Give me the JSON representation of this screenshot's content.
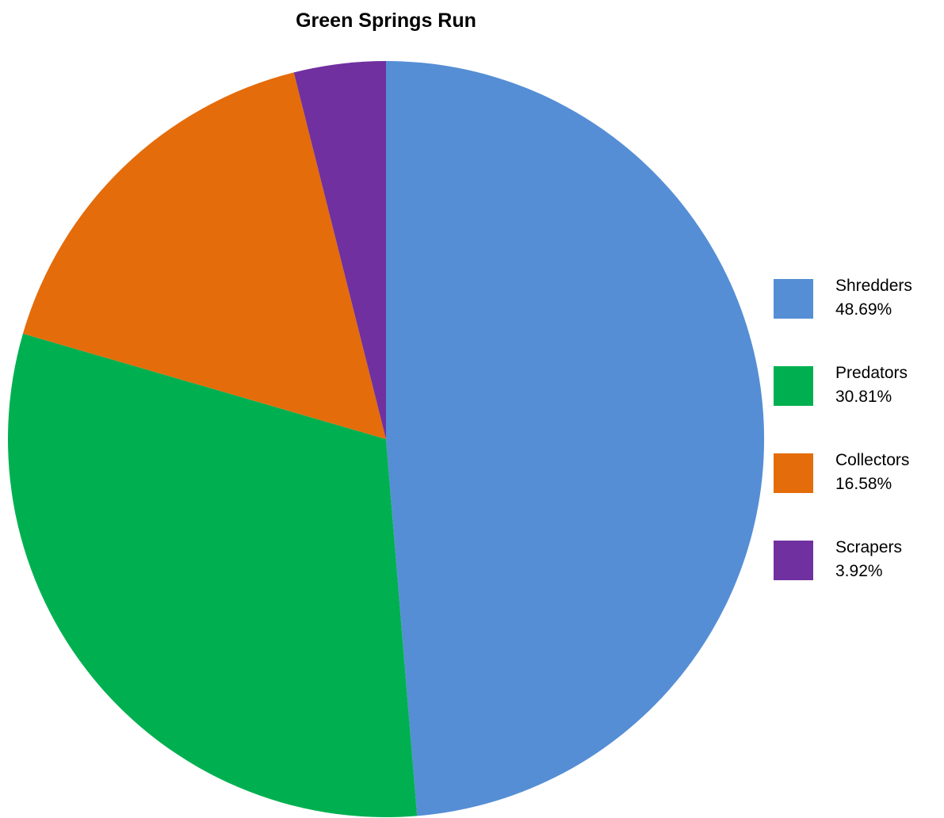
{
  "chart_data": {
    "type": "pie",
    "title": "Green Springs Run",
    "legend_position": "right",
    "slices": [
      {
        "label": "Shredders",
        "value": 48.69,
        "percent_label": "48.69%",
        "color": "#558ED5"
      },
      {
        "label": "Predators",
        "value": 30.81,
        "percent_label": "30.81%",
        "color": "#00B050"
      },
      {
        "label": "Collectors",
        "value": 16.58,
        "percent_label": "16.58%",
        "color": "#E46C0A"
      },
      {
        "label": "Scrapers",
        "value": 3.92,
        "percent_label": "3.92%",
        "color": "#7030A0"
      }
    ]
  }
}
